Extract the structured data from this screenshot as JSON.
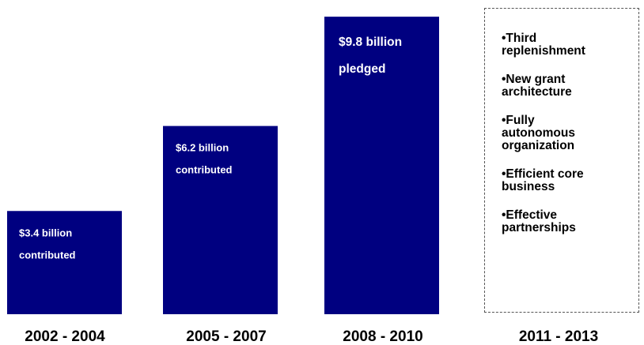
{
  "chart_data": {
    "type": "bar",
    "categories": [
      "2002 - 2004",
      "2005 - 2007",
      "2008 - 2010"
    ],
    "values": [
      3.4,
      6.2,
      9.8
    ],
    "bar_labels": [
      [
        "$3.4 billion",
        "contributed"
      ],
      [
        "$6.2 billion",
        "contributed"
      ],
      [
        "$9.8 billion",
        "pledged"
      ]
    ],
    "ylim": [
      0,
      10.35
    ],
    "bar_color": "#000080",
    "title": "",
    "xlabel": "",
    "ylabel": ""
  },
  "future_period": {
    "label": "2011 - 2013",
    "items": [
      "•Third\nreplenishment",
      "•New grant\narchitecture",
      "•Fully\nautonomous\norganization",
      "•Efficient core\nbusiness",
      "•Effective\npartnerships"
    ]
  }
}
